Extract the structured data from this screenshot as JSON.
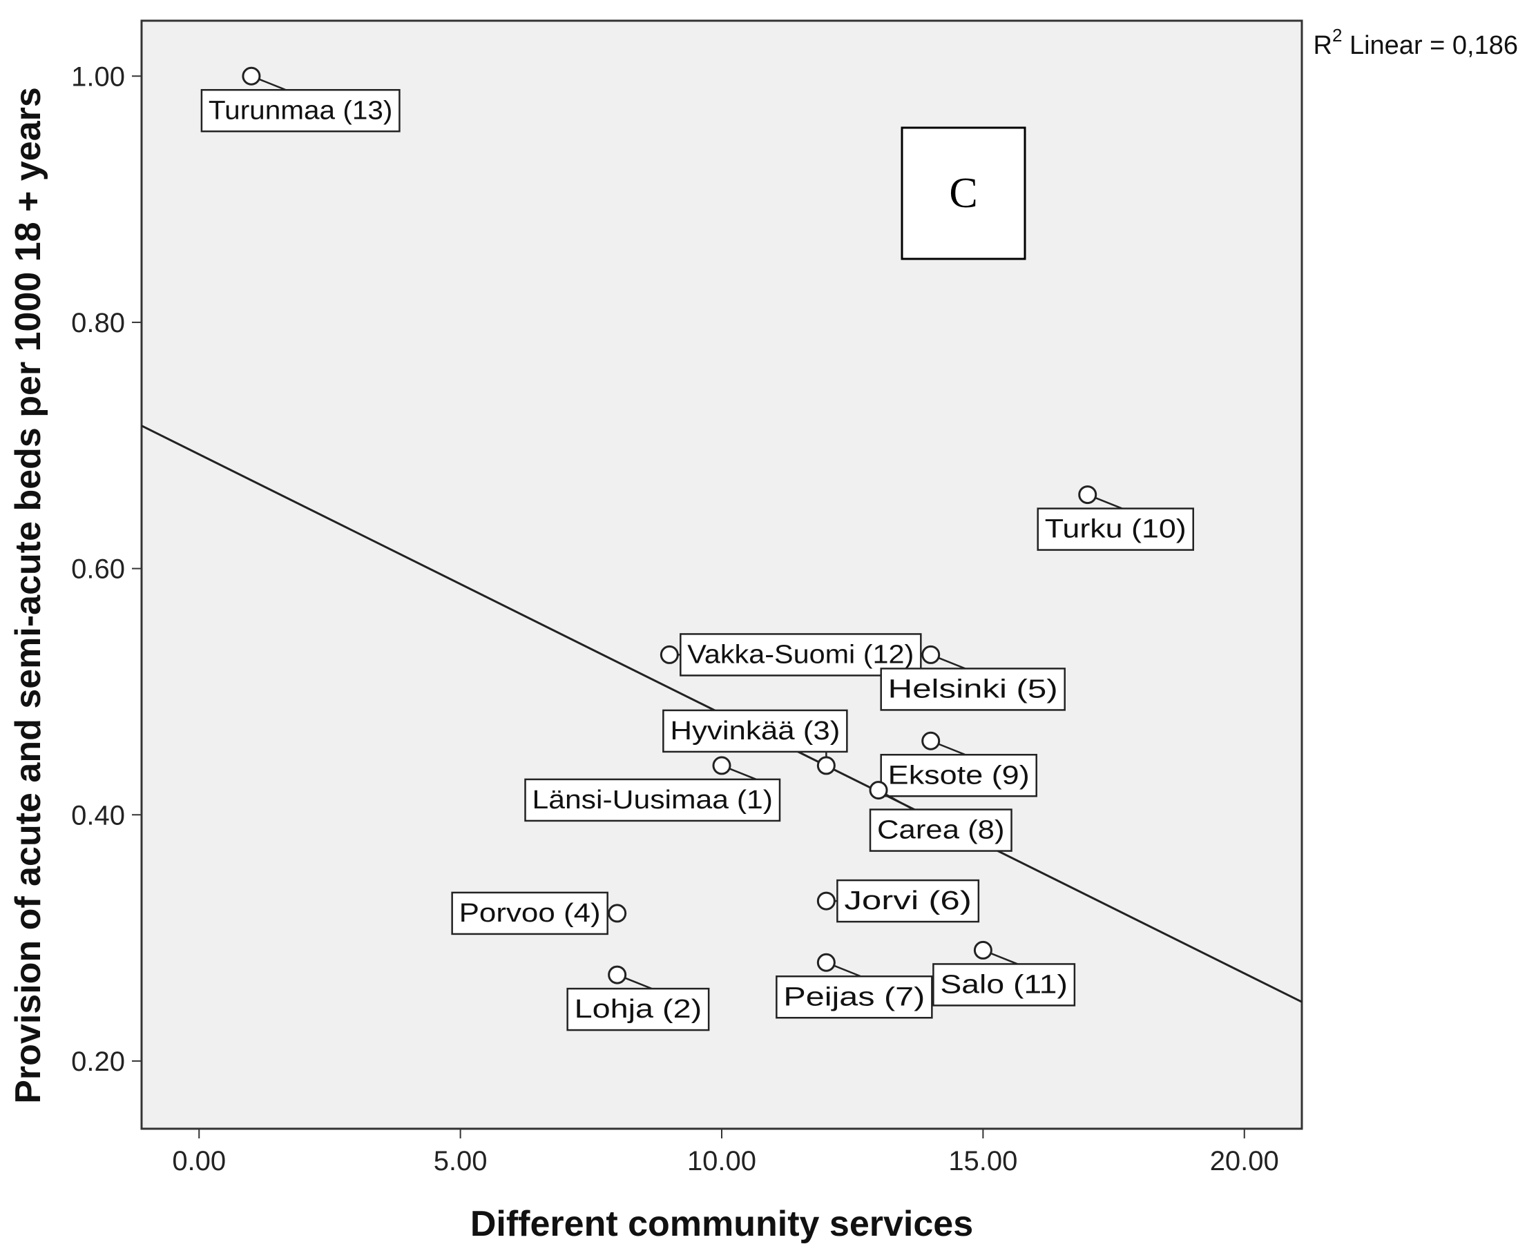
{
  "chart_data": {
    "type": "scatter",
    "xlabel": "Different community services",
    "ylabel": "Provision of acute and semi-acute beds per 1000 18 + years",
    "xlim": [
      -1.1,
      21.1
    ],
    "ylim": [
      0.145,
      1.045
    ],
    "x_ticks": [
      "0.00",
      "5.00",
      "10.00",
      "15.00",
      "20.00"
    ],
    "y_ticks": [
      "0.20",
      "0.40",
      "0.60",
      "0.80",
      "1.00"
    ],
    "grid": false,
    "fit_line": {
      "x": [
        -1.1,
        21.1
      ],
      "y": [
        0.716,
        0.248
      ]
    },
    "r2_prefix": "R",
    "r2_sup": "2",
    "r2_text": " Linear = 0,186",
    "panel_label": "C",
    "points": [
      {
        "x": 1,
        "y": 1.0,
        "label": "Turunmaa (13)",
        "pos": "below-right"
      },
      {
        "x": 17,
        "y": 0.66,
        "label": "Turku (10)",
        "pos": "below-right"
      },
      {
        "x": 9,
        "y": 0.53,
        "label": "Vakka-Suomi (12)",
        "pos": "right"
      },
      {
        "x": 14,
        "y": 0.53,
        "label": "Helsinki (5)",
        "pos": "below-right"
      },
      {
        "x": 12,
        "y": 0.44,
        "label": "Hyvinkää (3)",
        "pos": "above"
      },
      {
        "x": 14,
        "y": 0.46,
        "label": "Eksote (9)",
        "pos": "below-right"
      },
      {
        "x": 10,
        "y": 0.44,
        "label": "Länsi-Uusimaa (1)",
        "pos": "below-left"
      },
      {
        "x": 13,
        "y": 0.42,
        "label": "Carea (8)",
        "pos": "below"
      },
      {
        "x": 8,
        "y": 0.32,
        "label": "Porvoo (4)",
        "pos": "left"
      },
      {
        "x": 12,
        "y": 0.33,
        "label": "Jorvi (6)",
        "pos": "right"
      },
      {
        "x": 15,
        "y": 0.29,
        "label": "Salo (11)",
        "pos": "below-right"
      },
      {
        "x": 8,
        "y": 0.27,
        "label": "Lohja (2)",
        "pos": "below-right"
      },
      {
        "x": 12,
        "y": 0.28,
        "label": "Peijas (7)",
        "pos": "below-right"
      }
    ]
  }
}
